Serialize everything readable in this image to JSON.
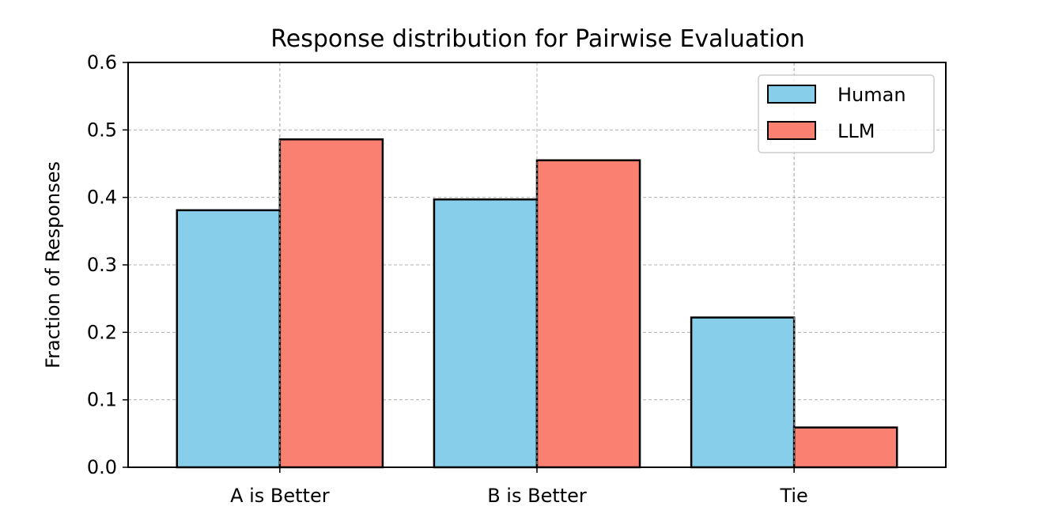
{
  "chart_data": {
    "type": "bar",
    "title": "Response distribution for Pairwise Evaluation",
    "xlabel": "",
    "ylabel": "Fraction of Responses",
    "categories": [
      "A is Better",
      "B is Better",
      "Tie"
    ],
    "series": [
      {
        "name": "Human",
        "values": [
          0.381,
          0.397,
          0.222
        ],
        "color": "#87CEEB"
      },
      {
        "name": "LLM",
        "values": [
          0.486,
          0.455,
          0.059
        ],
        "color": "#FA8072"
      }
    ],
    "ylim": [
      0,
      0.6
    ],
    "yticks": [
      0.0,
      0.1,
      0.2,
      0.3,
      0.4,
      0.5,
      0.6
    ],
    "ytick_labels": [
      "0.0",
      "0.1",
      "0.2",
      "0.3",
      "0.4",
      "0.5",
      "0.6"
    ],
    "grid": true,
    "grid_style": "dashed",
    "legend_position": "top-right",
    "bar_edge_color": "#000000"
  }
}
